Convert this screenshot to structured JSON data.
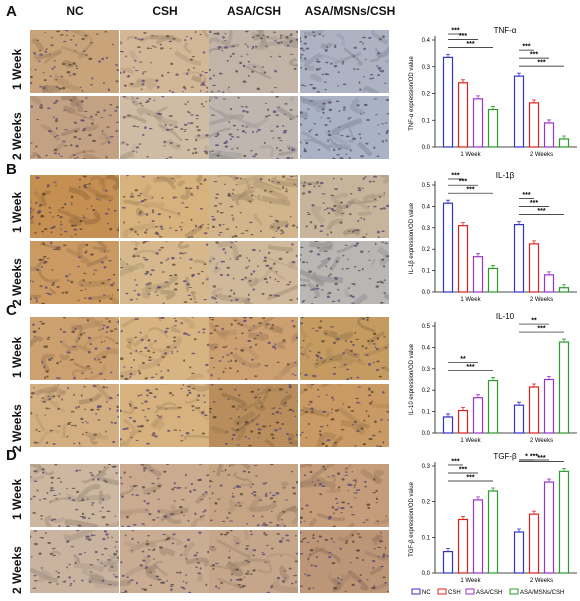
{
  "columns": [
    "NC",
    "CSH",
    "ASA/CSH",
    "ASA/MSNs/CSH"
  ],
  "rows": [
    "1 Week",
    "2 Weeks"
  ],
  "panels": [
    "A",
    "B",
    "C",
    "D"
  ],
  "colors": {
    "NC": "#3333cc",
    "CSH": "#e02020",
    "ASA/CSH": "#9933cc",
    "ASA/MSNs/CSH": "#2a9d2a",
    "axis": "#111111"
  },
  "tiles": [
    [
      "#c9a47a",
      "#d4b796",
      "#c2b4a6",
      "#aeb3c4"
    ],
    [
      "#c3a183",
      "#d0bca4",
      "#bfb6b0",
      "#aab2c6"
    ],
    [
      "#c68f52",
      "#d8b27c",
      "#d3b58b",
      "#c8b49a"
    ],
    [
      "#cb9a62",
      "#d6b88c",
      "#d0b89a",
      "#b9b6b4"
    ],
    [
      "#cda070",
      "#d9b483",
      "#cda072",
      "#c69b62"
    ],
    [
      "#d3ae80",
      "#d7b27e",
      "#b98e5c",
      "#c99a63"
    ],
    [
      "#cdb7a0",
      "#cbab8f",
      "#c6a585",
      "#c59d7a"
    ],
    [
      "#cab4a0",
      "#c9ac92",
      "#c6a68a",
      "#bd9678"
    ]
  ],
  "chart_data": [
    {
      "type": "bar",
      "title": "TNF-α",
      "ylabel": "TNF-α expression/OD value",
      "categories": [
        "1 Week",
        "2 Weeks"
      ],
      "ylim": [
        0,
        0.4
      ],
      "yticks": [
        "0.0",
        "0.1",
        "0.2",
        "0.3",
        "0.4"
      ],
      "series": [
        {
          "name": "NC",
          "values": [
            0.335,
            0.265
          ]
        },
        {
          "name": "CSH",
          "values": [
            0.24,
            0.165
          ]
        },
        {
          "name": "ASA/CSH",
          "values": [
            0.18,
            0.09
          ]
        },
        {
          "name": "ASA/MSNs/CSH",
          "values": [
            0.14,
            0.03
          ]
        }
      ],
      "significance": [
        "***",
        "***",
        "***",
        "***",
        "***",
        "***"
      ]
    },
    {
      "type": "bar",
      "title": "IL-1β",
      "ylabel": "IL-1β expression/OD value",
      "categories": [
        "1 Week",
        "2 Weeks"
      ],
      "ylim": [
        0,
        0.5
      ],
      "yticks": [
        "0.0",
        "0.1",
        "0.2",
        "0.3",
        "0.4",
        "0.5"
      ],
      "series": [
        {
          "name": "NC",
          "values": [
            0.415,
            0.315
          ]
        },
        {
          "name": "CSH",
          "values": [
            0.31,
            0.225
          ]
        },
        {
          "name": "ASA/CSH",
          "values": [
            0.165,
            0.08
          ]
        },
        {
          "name": "ASA/MSNs/CSH",
          "values": [
            0.11,
            0.02
          ]
        }
      ],
      "significance": [
        "***",
        "***",
        "***",
        "***",
        "***",
        "***"
      ]
    },
    {
      "type": "bar",
      "title": "IL-10",
      "ylabel": "IL-10 expression/OD value",
      "categories": [
        "1 Week",
        "2 Weeks"
      ],
      "ylim": [
        0,
        0.5
      ],
      "yticks": [
        "0.0",
        "0.1",
        "0.2",
        "0.3",
        "0.4",
        "0.5"
      ],
      "series": [
        {
          "name": "NC",
          "values": [
            0.075,
            0.13
          ]
        },
        {
          "name": "CSH",
          "values": [
            0.105,
            0.215
          ]
        },
        {
          "name": "ASA/CSH",
          "values": [
            0.165,
            0.25
          ]
        },
        {
          "name": "ASA/MSNs/CSH",
          "values": [
            0.245,
            0.425
          ]
        }
      ],
      "significance": [
        "**",
        "***",
        "**",
        "***"
      ]
    },
    {
      "type": "bar",
      "title": "TGF-β",
      "ylabel": "TGF-β expression/OD value",
      "categories": [
        "1 Week",
        "2 Weeks"
      ],
      "ylim": [
        0,
        0.3
      ],
      "yticks": [
        "0.0",
        "0.1",
        "0.2",
        "0.3"
      ],
      "series": [
        {
          "name": "NC",
          "values": [
            0.06,
            0.115
          ]
        },
        {
          "name": "CSH",
          "values": [
            0.15,
            0.165
          ]
        },
        {
          "name": "ASA/CSH",
          "values": [
            0.205,
            0.255
          ]
        },
        {
          "name": "ASA/MSNs/CSH",
          "values": [
            0.23,
            0.285
          ]
        }
      ],
      "significance": [
        "***",
        "***",
        "***",
        "*",
        "***",
        "***"
      ]
    }
  ],
  "legend": [
    "NC",
    "CSH",
    "ASA/CSH",
    "ASA/MSNs/CSH"
  ]
}
